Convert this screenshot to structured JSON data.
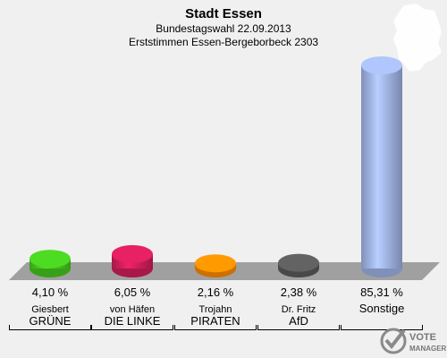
{
  "header": {
    "title": "Stadt Essen",
    "subtitle": "Bundestagswahl 22.09.2013",
    "subtitle2": "Erststimmen Essen-Bergeborbeck 2303"
  },
  "logo": {
    "line1": "VOTE",
    "line2": "MANAGER",
    "icon": "vote-manager-check-icon"
  },
  "chart_data": {
    "type": "bar",
    "categories": [
      "GRÜNE",
      "DIE LINKE",
      "PIRATEN",
      "AfD",
      "Sonstige"
    ],
    "candidates": [
      "Giesbert",
      "von Häfen",
      "Trojahn",
      "Dr. Fritz",
      ""
    ],
    "values": [
      4.1,
      6.05,
      2.16,
      2.38,
      85.31
    ],
    "value_labels": [
      "4,10 %",
      "6,05 %",
      "2,16 %",
      "2,38 %",
      "85,31 %"
    ],
    "colors": [
      "#46c81e",
      "#d21e5a",
      "#ff8c00",
      "#5a5a5a",
      "#a0b4e6"
    ],
    "ylim": [
      0,
      100
    ]
  }
}
